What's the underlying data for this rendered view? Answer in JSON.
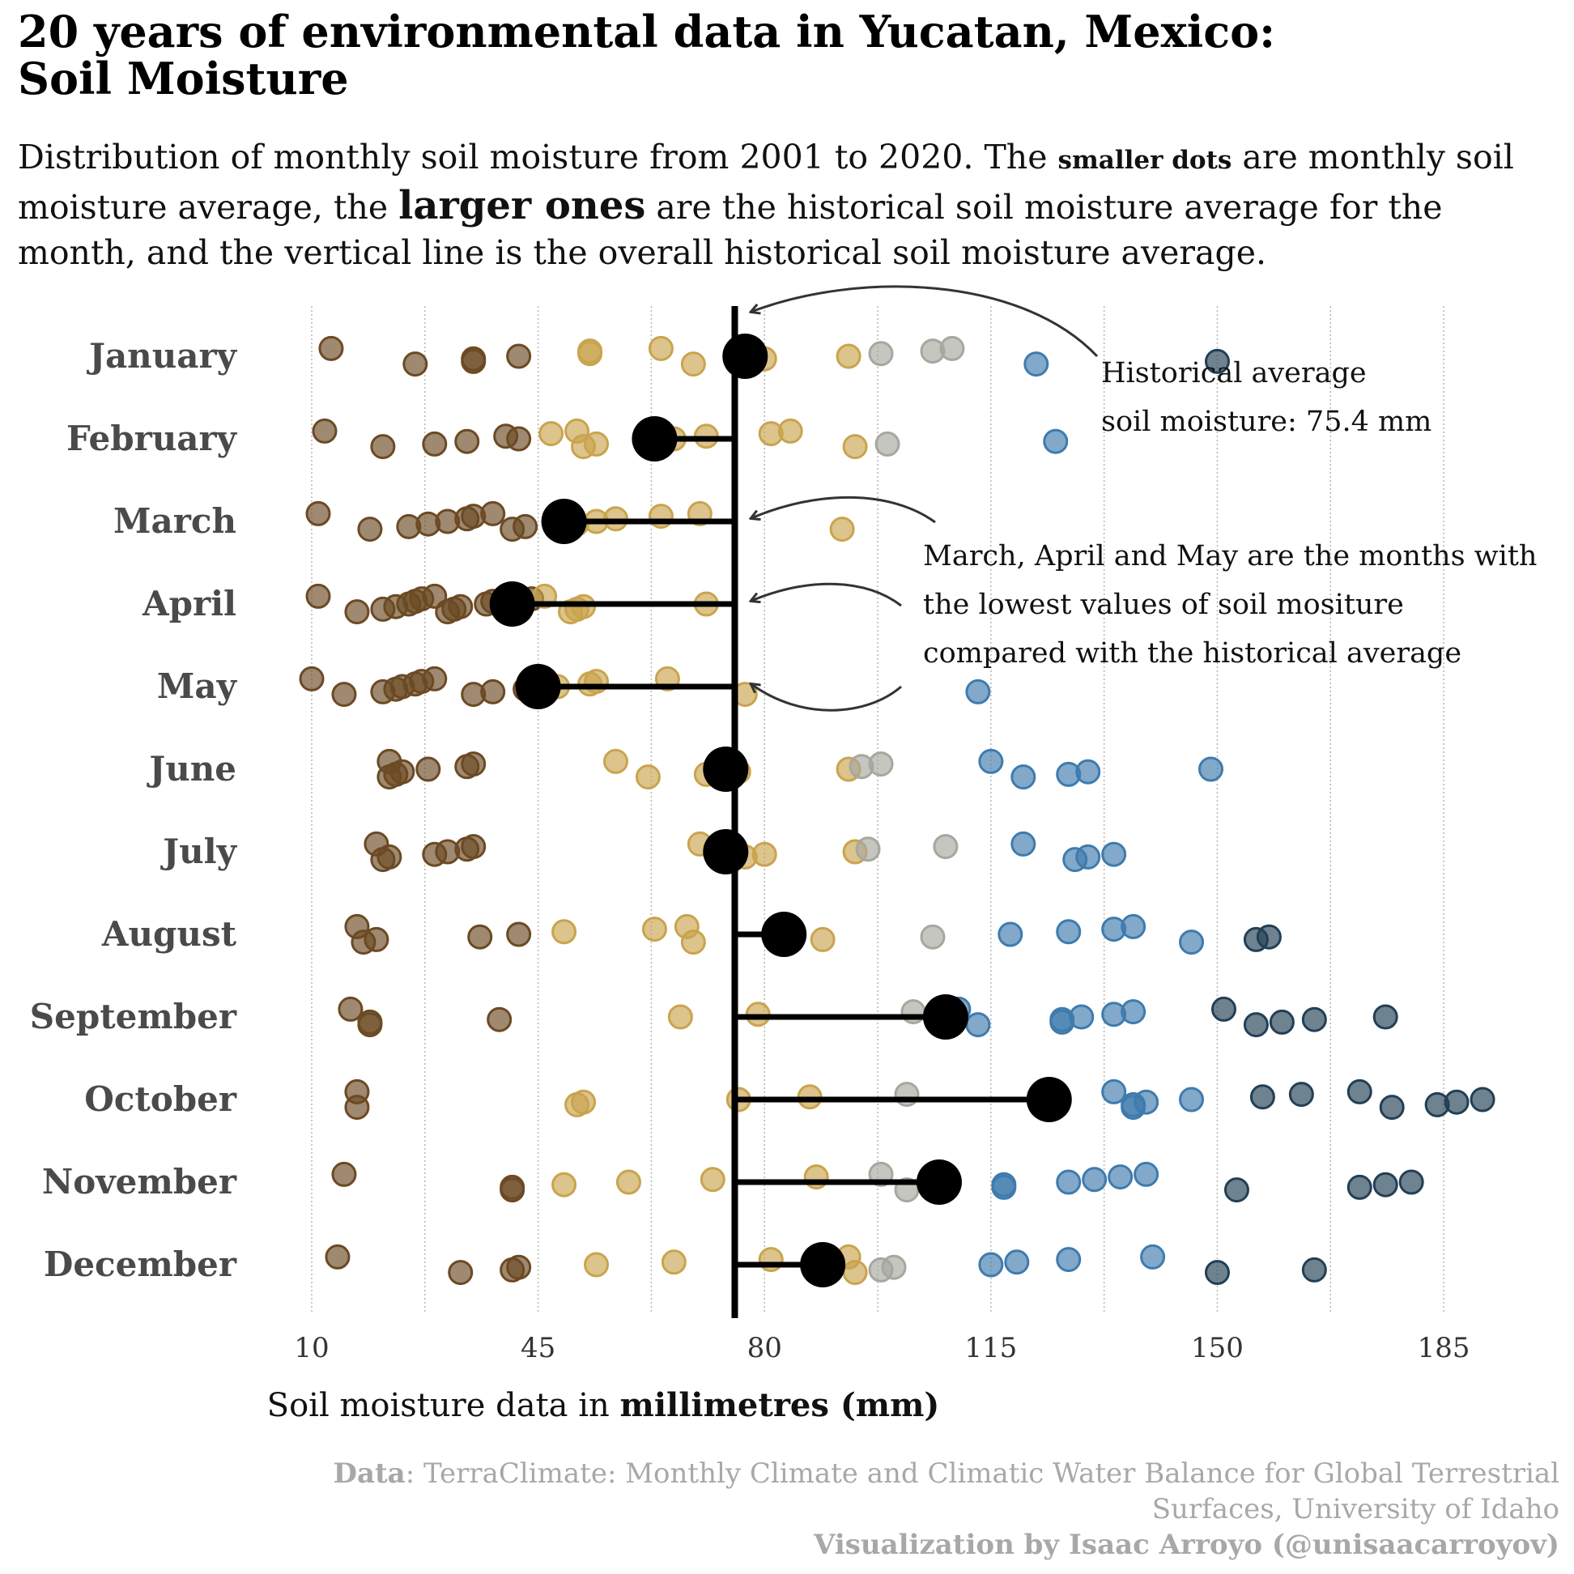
{
  "title_line1": "20 years of environmental data in Yucatan, Mexico:",
  "title_line2": "Soil Moisture",
  "subtitle": {
    "part1": "Distribution of monthly soil moisture from 2001 to 2020. The ",
    "bold1": "smaller dots",
    "part2": " are monthly soil moisture average, the ",
    "bold2": "larger ones",
    "part3": " are the historical soil moisture average for the month, and the vertical line is the overall historical soil moisture average."
  },
  "xaxis": {
    "label_prefix": "Soil moisture data in ",
    "label_bold": "millimetres (mm)"
  },
  "annotations": {
    "overall": [
      "Historical average",
      "soil moisture: 75.4 mm"
    ],
    "low_months": [
      "March, April and May are the months with",
      "the lowest values of soil mositure",
      "compared with the historical average"
    ]
  },
  "caption": {
    "data_bold": "Data",
    "data_text": ": TerraClimate: Monthly Climate and Climatic Water Balance for Global Terrestrial Surfaces, University of Idaho",
    "viz": "Visualization by Isaac Arroyo (@unisaacarroyov)"
  },
  "colors": {
    "dry": "#6b4a24",
    "mid": "#c9a44e",
    "neutral": "#a7a7a0",
    "wet": "#3f7bad",
    "very_wet": "#223f55",
    "mean": "#000000",
    "axis_text": "#4a4a4a"
  },
  "chart_data": {
    "type": "scatter",
    "xlim": [
      10,
      194
    ],
    "x_ticks": [
      10,
      45,
      80,
      115,
      150,
      185
    ],
    "grid": "vertical dotted",
    "overall_mean": 75.4,
    "categories": [
      "January",
      "February",
      "March",
      "April",
      "May",
      "June",
      "July",
      "August",
      "September",
      "October",
      "November",
      "December"
    ],
    "monthly_mean": [
      77,
      63,
      49,
      41,
      45,
      74,
      74,
      83,
      108,
      124,
      107,
      89
    ],
    "monthly_values": [
      [
        13,
        26,
        35,
        35,
        42,
        53,
        53,
        64,
        69,
        77,
        80,
        93,
        98,
        106,
        109,
        122,
        150
      ],
      [
        12,
        21,
        29,
        34,
        42,
        40,
        47,
        51,
        52,
        54,
        62,
        66,
        71,
        81,
        84,
        94,
        99,
        125
      ],
      [
        11,
        19,
        25,
        28,
        31,
        34,
        35,
        38,
        41,
        43,
        51,
        54,
        57,
        64,
        70,
        92
      ],
      [
        11,
        17,
        21,
        23,
        25,
        26,
        27,
        29,
        31,
        32,
        33,
        37,
        38,
        44,
        46,
        50,
        51,
        52,
        71
      ],
      [
        10,
        15,
        21,
        23,
        24,
        26,
        27,
        29,
        35,
        38,
        43,
        48,
        53,
        54,
        65,
        77,
        113
      ],
      [
        22,
        22,
        23,
        24,
        28,
        34,
        35,
        57,
        62,
        71,
        76,
        93,
        95,
        98,
        115,
        120,
        127,
        130,
        149
      ],
      [
        20,
        21,
        22,
        29,
        31,
        34,
        35,
        70,
        75,
        77,
        80,
        94,
        96,
        108,
        120,
        128,
        130,
        134
      ],
      [
        17,
        18,
        20,
        36,
        42,
        49,
        63,
        68,
        69,
        89,
        106,
        118,
        127,
        134,
        137,
        146,
        156,
        158
      ],
      [
        16,
        19,
        19,
        39,
        67,
        79,
        103,
        110,
        113,
        126,
        126,
        129,
        134,
        137,
        151,
        156,
        160,
        165,
        176
      ],
      [
        17,
        17,
        51,
        52,
        76,
        87,
        102,
        134,
        137,
        137,
        139,
        146,
        157,
        163,
        172,
        177,
        184,
        187,
        191
      ],
      [
        15,
        41,
        41,
        49,
        59,
        72,
        88,
        98,
        102,
        117,
        117,
        127,
        131,
        135,
        139,
        153,
        172,
        176,
        180
      ],
      [
        14,
        33,
        41,
        42,
        54,
        66,
        81,
        93,
        94,
        98,
        100,
        115,
        119,
        127,
        140,
        150,
        165
      ]
    ]
  }
}
